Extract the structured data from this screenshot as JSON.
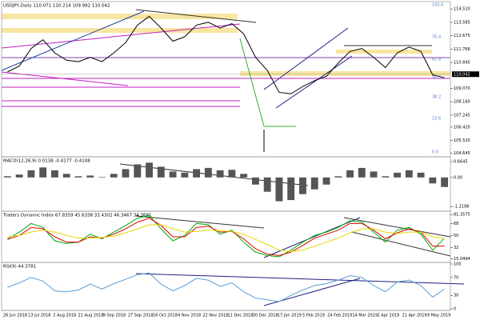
{
  "chart_data": [
    {
      "type": "line",
      "label": "USDJPY,Daily 110.071 110.214 109.992 110.042",
      "ylim": [
        104.5,
        114.9
      ],
      "yticks": [
        {
          "value": 114.51,
          "label": "114.510"
        },
        {
          "value": 113.585,
          "label": "113.585"
        },
        {
          "value": 112.675,
          "label": "112.675"
        },
        {
          "value": 111.766,
          "label": "111.766"
        },
        {
          "value": 110.845,
          "label": "110.845"
        },
        {
          "value": 109.07,
          "label": "109.070"
        },
        {
          "value": 108.16,
          "label": "108.160"
        },
        {
          "value": 107.245,
          "label": "107.245"
        },
        {
          "value": 106.42,
          "label": "106.420"
        },
        {
          "value": 105.52,
          "label": "105.520"
        },
        {
          "value": 104.645,
          "label": "104.645"
        }
      ],
      "last_price": 110.042,
      "fib_labels": [
        "100.0",
        "76.4",
        "61.8",
        "50.0",
        "38.2",
        "23.6",
        "0.0"
      ],
      "series": [
        {
          "color": "#000000",
          "values": [
            110.2,
            110.6,
            111.8,
            112.4,
            111.5,
            111.0,
            110.9,
            111.2,
            110.9,
            111.5,
            112.2,
            113.4,
            114.0,
            113.2,
            112.3,
            112.6,
            113.4,
            113.6,
            113.2,
            113.5,
            112.8,
            111.2,
            110.3,
            108.8,
            108.7,
            109.2,
            109.6,
            109.9,
            110.8,
            111.6,
            111.8,
            111.2,
            110.5,
            111.5,
            111.9,
            111.6,
            110.0,
            109.8
          ]
        }
      ]
    },
    {
      "type": "bar",
      "label": "MACD(12,26,9) 0.0138 -0.4177 -0.4108",
      "ylim": [
        -1.35,
        0.8
      ],
      "yticks": [
        0.6645,
        {
          "value": 0,
          "label": "0.00"
        },
        -1.2198
      ],
      "series": [
        {
          "color": "#555555",
          "values": [
            0.05,
            0.12,
            0.3,
            0.42,
            0.3,
            0.15,
            0.05,
            0.08,
            0.02,
            0.15,
            0.35,
            0.55,
            0.62,
            0.45,
            0.25,
            0.2,
            0.35,
            0.4,
            0.3,
            0.32,
            0.15,
            -0.3,
            -0.6,
            -1.0,
            -0.95,
            -0.7,
            -0.5,
            -0.3,
            0.05,
            0.3,
            0.4,
            0.25,
            0.05,
            0.2,
            0.3,
            0.2,
            -0.25,
            -0.4
          ]
        }
      ]
    },
    {
      "type": "line",
      "label": "Traders Dynamic Index 67.8359 45.6338 33.4302 46.3467 34.3681",
      "ylim": [
        12,
        84
      ],
      "yticks": [
        81.3575,
        68,
        50,
        32,
        15.0494
      ],
      "series": [
        {
          "color": "#00aa00",
          "values": [
            45,
            55,
            68,
            62,
            42,
            38,
            40,
            52,
            45,
            55,
            65,
            76,
            80,
            60,
            42,
            50,
            68,
            66,
            52,
            58,
            40,
            25,
            20,
            18,
            28,
            40,
            50,
            55,
            62,
            72,
            70,
            55,
            40,
            58,
            62,
            52,
            28,
            46
          ]
        },
        {
          "color": "#dd0000",
          "values": [
            44,
            50,
            62,
            60,
            48,
            40,
            40,
            48,
            46,
            52,
            60,
            70,
            76,
            65,
            48,
            48,
            62,
            64,
            55,
            56,
            45,
            30,
            22,
            20,
            25,
            35,
            46,
            52,
            58,
            68,
            68,
            58,
            45,
            54,
            60,
            55,
            34,
            34
          ]
        },
        {
          "color": "#e6d800",
          "values": [
            48,
            50,
            55,
            58,
            55,
            50,
            46,
            46,
            47,
            49,
            54,
            60,
            66,
            66,
            60,
            55,
            56,
            58,
            57,
            56,
            52,
            44,
            36,
            28,
            26,
            28,
            34,
            40,
            46,
            54,
            60,
            60,
            55,
            53,
            55,
            55,
            48,
            45
          ]
        }
      ]
    },
    {
      "type": "line",
      "label": "RSI(9) 44.3781",
      "ylim": [
        0,
        100
      ],
      "yticks": [
        100,
        70,
        30,
        0
      ],
      "series": [
        {
          "color": "#5b9bd5",
          "values": [
            48,
            58,
            70,
            62,
            40,
            38,
            42,
            55,
            44,
            56,
            66,
            76,
            80,
            55,
            40,
            52,
            68,
            64,
            50,
            58,
            38,
            24,
            20,
            16,
            30,
            42,
            52,
            56,
            64,
            74,
            70,
            52,
            38,
            60,
            64,
            52,
            26,
            44
          ]
        }
      ]
    }
  ],
  "date_labels": [
    "26 Jun 2018",
    "13 Jul 2018",
    "2 Aug 2018",
    "21 Aug 2018",
    "9 Sep 2018",
    "27 Sep 2018",
    "16 Oct 2018",
    "4 Nov 2018",
    "22 Nov 2018",
    "11 Dec 2018",
    "30 Dec 2018",
    "17 Jan 2019",
    "5 Feb 2019",
    "24 Feb 2019",
    "14 Mar 2019",
    "2 Apr 2019",
    "21 Apr 2019",
    "9 May 2019"
  ]
}
